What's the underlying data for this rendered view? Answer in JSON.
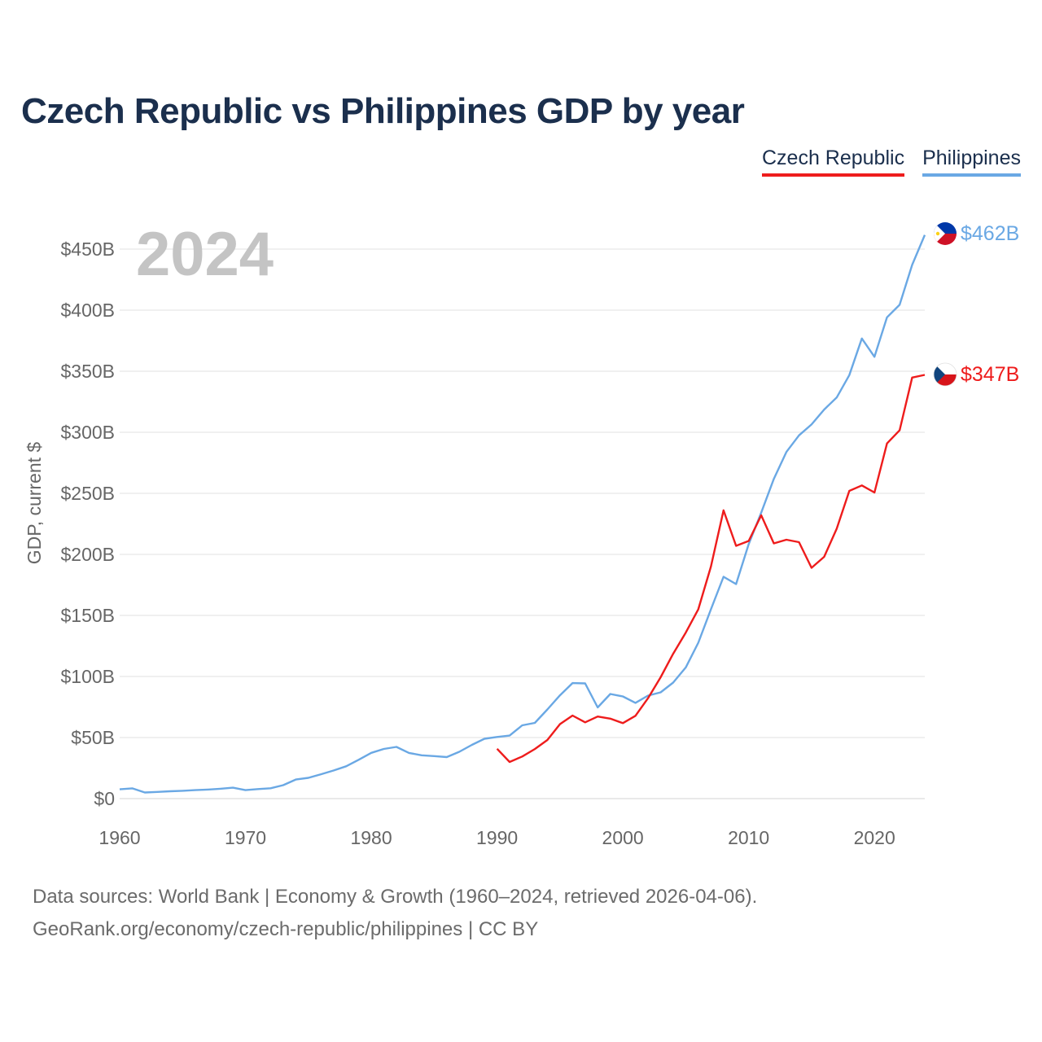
{
  "title": "Czech Republic vs Philippines GDP by year",
  "legend": {
    "czech": "Czech Republic",
    "philippines": "Philippines"
  },
  "footer": {
    "line1": "Data sources: World Bank | Economy & Growth (1960–2024, retrieved 2026-04-06).",
    "line2": "GeoRank.org/economy/czech-republic/philippines | CC BY"
  },
  "chart_data": {
    "type": "line",
    "year_label": "2024",
    "ylabel": "GDP, current $",
    "xlim": [
      1960,
      2024
    ],
    "ylim": [
      0,
      450
    ],
    "y_unit": "billion USD",
    "x_ticks": [
      1960,
      1970,
      1980,
      1990,
      2000,
      2010,
      2020
    ],
    "y_ticks": [
      {
        "value": 0,
        "label": "$0"
      },
      {
        "value": 50,
        "label": "$50B"
      },
      {
        "value": 100,
        "label": "$100B"
      },
      {
        "value": 150,
        "label": "$150B"
      },
      {
        "value": 200,
        "label": "$200B"
      },
      {
        "value": 250,
        "label": "$250B"
      },
      {
        "value": 300,
        "label": "$300B"
      },
      {
        "value": 350,
        "label": "$350B"
      },
      {
        "value": 400,
        "label": "$400B"
      },
      {
        "value": 450,
        "label": "$450B"
      }
    ],
    "colors": {
      "czech": "#ee1c1c",
      "philippines": "#6aa8e4",
      "grid": "#e6e6e6",
      "tick": "#666666",
      "year": "#c4c4c4"
    },
    "series": [
      {
        "name": "Philippines",
        "key": "philippines",
        "end_label": "$462B",
        "flag": "philippines-flag",
        "x": [
          1960,
          1961,
          1962,
          1963,
          1964,
          1965,
          1966,
          1967,
          1968,
          1969,
          1970,
          1971,
          1972,
          1973,
          1974,
          1975,
          1976,
          1977,
          1978,
          1979,
          1980,
          1981,
          1982,
          1983,
          1984,
          1985,
          1986,
          1987,
          1988,
          1989,
          1990,
          1991,
          1992,
          1993,
          1994,
          1995,
          1996,
          1997,
          1998,
          1999,
          2000,
          2001,
          2002,
          2003,
          2004,
          2005,
          2006,
          2007,
          2008,
          2009,
          2010,
          2011,
          2012,
          2013,
          2014,
          2015,
          2016,
          2017,
          2018,
          2019,
          2020,
          2021,
          2022,
          2023,
          2024
        ],
        "values": [
          7.6,
          8.4,
          5.0,
          5.5,
          6.0,
          6.4,
          6.9,
          7.4,
          8.1,
          8.9,
          6.9,
          7.8,
          8.5,
          11.0,
          15.6,
          17.0,
          19.9,
          23.0,
          26.5,
          31.8,
          37.5,
          40.7,
          42.3,
          37.4,
          35.5,
          34.8,
          34.0,
          38.3,
          44.0,
          49.0,
          50.5,
          51.6,
          60.0,
          62.0,
          73.0,
          84.6,
          94.6,
          94.3,
          74.7,
          85.7,
          83.7,
          78.4,
          84.3,
          87.0,
          95.0,
          107.4,
          127.7,
          155.0,
          181.7,
          175.7,
          208.4,
          234.2,
          261.9,
          283.9,
          297.5,
          306.4,
          318.6,
          328.5,
          346.8,
          376.8,
          361.8,
          394.1,
          404.4,
          437.1,
          461.6
        ]
      },
      {
        "name": "Czech Republic",
        "key": "czech",
        "end_label": "$347B",
        "flag": "czech-flag",
        "x": [
          1990,
          1991,
          1992,
          1993,
          1994,
          1995,
          1996,
          1997,
          1998,
          1999,
          2000,
          2001,
          2002,
          2003,
          2004,
          2005,
          2006,
          2007,
          2008,
          2009,
          2010,
          2011,
          2012,
          2013,
          2014,
          2015,
          2016,
          2017,
          2018,
          2019,
          2020,
          2021,
          2022,
          2023,
          2024
        ],
        "values": [
          40.8,
          30.0,
          34.5,
          40.6,
          48.0,
          61.0,
          68.0,
          62.5,
          67.2,
          65.5,
          61.8,
          67.8,
          82.2,
          99.3,
          118.6,
          135.9,
          155.1,
          190.0,
          236.1,
          207.0,
          211.0,
          232.0,
          209.0,
          212.0,
          210.0,
          189.0,
          198.0,
          221.0,
          252.0,
          256.5,
          250.7,
          290.9,
          301.6,
          344.8,
          347.0
        ]
      }
    ]
  }
}
